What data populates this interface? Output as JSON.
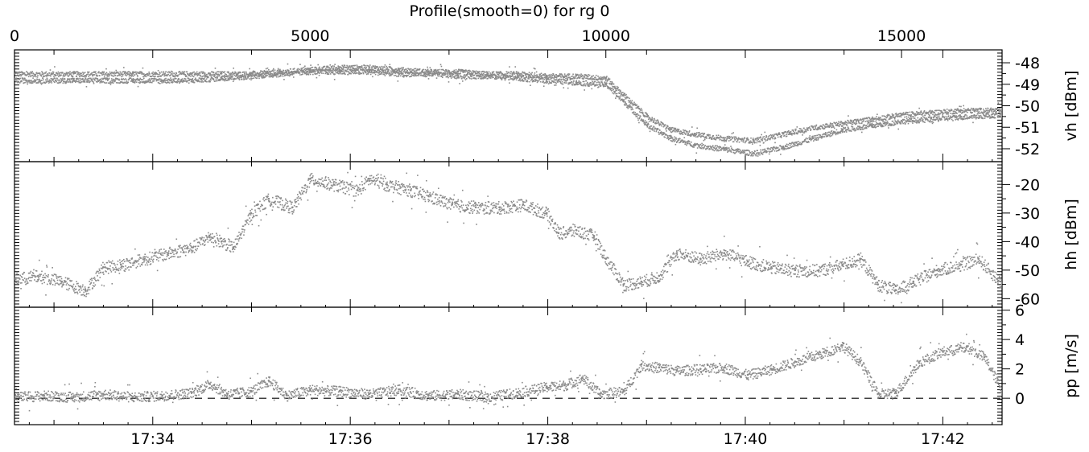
{
  "chart_data": {
    "type": "scatter",
    "title": "Profile(smooth=0) for rg 0",
    "top_axis": {
      "range": [
        0,
        16700
      ],
      "ticks": [
        "0",
        "5000",
        "10000",
        "15000"
      ]
    },
    "bottom_axis": {
      "range_minutes": [
        32.6,
        42.6
      ],
      "ticks": [
        "17:34",
        "17:36",
        "17:38",
        "17:40",
        "17:42"
      ]
    },
    "grid": false,
    "marker_color": "#8a8a8a",
    "panels": [
      {
        "name": "vh",
        "ylabel": "vh [dBm]",
        "ylim": [
          -52.6,
          -47.4
        ],
        "ticks": [
          "-48",
          "-49",
          "-50",
          "-51",
          "-52"
        ],
        "series": [
          {
            "x": [
              0,
              1000,
              2000,
              3000,
              3500,
              4000,
              4500,
              5000,
              5500,
              6000,
              6500,
              7000,
              7500,
              8000,
              8500,
              9000,
              9500,
              10000,
              10300,
              10700,
              11100,
              11500,
              12000,
              12500,
              13000,
              13500,
              14000,
              14500,
              15000,
              15500,
              16000,
              16700
            ],
            "y": [
              -48.5,
              -48.5,
              -48.5,
              -48.5,
              -48.5,
              -48.5,
              -48.4,
              -48.3,
              -48.2,
              -48.2,
              -48.3,
              -48.4,
              -48.4,
              -48.5,
              -48.5,
              -48.6,
              -48.6,
              -48.7,
              -49.5,
              -50.5,
              -51.1,
              -51.3,
              -51.5,
              -51.6,
              -51.3,
              -51.0,
              -50.8,
              -50.6,
              -50.4,
              -50.3,
              -50.2,
              -50.2
            ]
          },
          {
            "x": [
              0,
              1000,
              2000,
              3000,
              3500,
              4000,
              4500,
              5000,
              5500,
              6000,
              6500,
              7000,
              7500,
              8000,
              8500,
              9000,
              9500,
              10000,
              10300,
              10700,
              11100,
              11500,
              12000,
              12500,
              13000,
              13500,
              14000,
              14500,
              15000,
              15500,
              16000,
              16700
            ],
            "y": [
              -48.8,
              -48.8,
              -48.8,
              -48.8,
              -48.7,
              -48.6,
              -48.5,
              -48.4,
              -48.4,
              -48.4,
              -48.5,
              -48.5,
              -48.6,
              -48.6,
              -48.7,
              -48.8,
              -48.9,
              -49.0,
              -49.8,
              -50.9,
              -51.5,
              -51.8,
              -52.0,
              -52.2,
              -51.9,
              -51.5,
              -51.1,
              -50.9,
              -50.7,
              -50.6,
              -50.5,
              -50.4
            ]
          }
        ]
      },
      {
        "name": "hh",
        "ylabel": "hh [dBm]",
        "ylim": [
          -63,
          -12
        ],
        "ticks": [
          "-20",
          "-30",
          "-40",
          "-50",
          "-60"
        ],
        "series": [
          {
            "x": [
              0,
              400,
              800,
              1200,
              1500,
              1800,
              2200,
              2600,
              3000,
              3300,
              3500,
              3700,
              4000,
              4300,
              4700,
              5000,
              5400,
              5800,
              6000,
              6300,
              6700,
              7000,
              7400,
              7800,
              8200,
              8600,
              9000,
              9200,
              9500,
              9800,
              10000,
              10300,
              10600,
              10900,
              11200,
              11600,
              12000,
              12400,
              12800,
              13200,
              13600,
              14000,
              14300,
              14600,
              14900,
              15200,
              15600,
              16000,
              16300,
              16700
            ],
            "y": [
              -53,
              -52,
              -54,
              -57,
              -49,
              -48,
              -46,
              -44,
              -42,
              -38,
              -40,
              -42,
              -30,
              -25,
              -28,
              -18,
              -20,
              -22,
              -18,
              -20,
              -22,
              -24,
              -27,
              -28,
              -28,
              -27,
              -30,
              -37,
              -36,
              -38,
              -46,
              -55,
              -54,
              -52,
              -44,
              -46,
              -44,
              -47,
              -49,
              -50,
              -50,
              -48,
              -46,
              -55,
              -57,
              -54,
              -50,
              -48,
              -46,
              -55
            ]
          }
        ]
      },
      {
        "name": "pp",
        "ylabel": "pp [m/s]",
        "ylim": [
          -1.8,
          6.2
        ],
        "ticks": [
          "0",
          "2",
          "4",
          "6"
        ],
        "zero_line": 0,
        "series": [
          {
            "x": [
              0,
              500,
              1000,
              1500,
              2000,
              2500,
              3000,
              3300,
              3600,
              4000,
              4300,
              4600,
              5000,
              5500,
              6000,
              6500,
              7000,
              7500,
              8000,
              8500,
              9000,
              9300,
              9600,
              9900,
              10300,
              10600,
              10900,
              11200,
              11600,
              12000,
              12400,
              12800,
              13200,
              13600,
              14000,
              14300,
              14600,
              14900,
              15300,
              15700,
              16100,
              16400,
              16700
            ],
            "y": [
              0.1,
              0.2,
              0.1,
              0.3,
              0.1,
              0.2,
              0.4,
              1.0,
              0.3,
              0.5,
              1.2,
              0.2,
              0.6,
              0.5,
              0.3,
              0.6,
              0.2,
              0.3,
              0.1,
              0.4,
              0.8,
              0.9,
              1.4,
              0.3,
              0.5,
              2.3,
              2.1,
              1.9,
              2.0,
              2.1,
              1.6,
              2.0,
              2.5,
              3.0,
              3.6,
              2.5,
              0.3,
              0.4,
              2.5,
              3.2,
              3.5,
              2.8,
              0.5
            ]
          }
        ]
      }
    ]
  }
}
